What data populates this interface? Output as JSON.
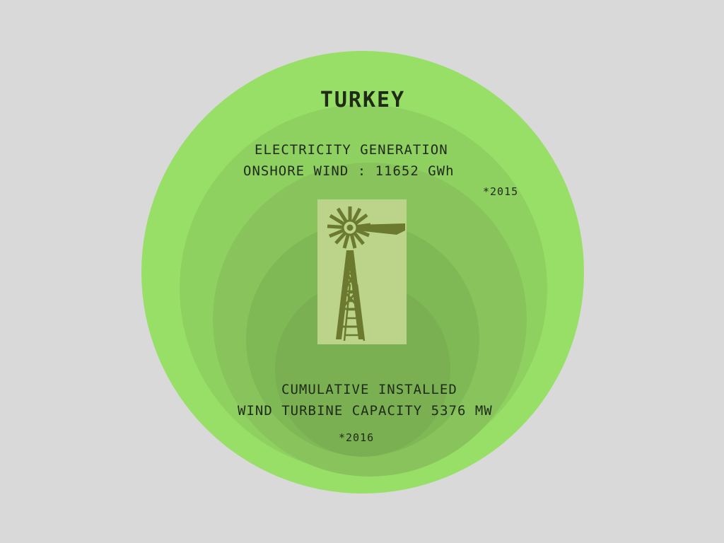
{
  "title": "TURKEY",
  "generation": {
    "line1": "ELECTRICITY GENERATION",
    "line2": "ONSHORE WIND : 11652 GWh",
    "year": "*2015"
  },
  "capacity": {
    "line1": "CUMULATIVE INSTALLED",
    "line2": "WIND TURBINE CAPACITY 5376 MW",
    "year": "*2016"
  },
  "icon": "windmill-icon",
  "colors": {
    "background": "#d9d9d9",
    "outer_circle": "#97df66",
    "windmill_panel": "#bcd48a",
    "windmill": "#6b7a2e"
  }
}
